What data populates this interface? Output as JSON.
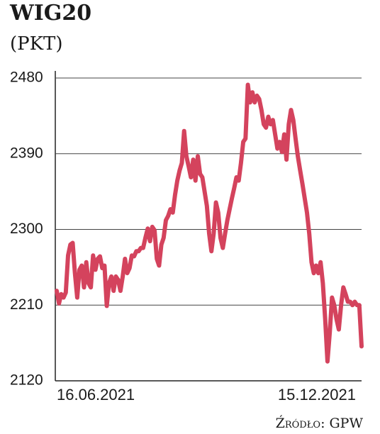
{
  "chart_data": {
    "type": "line",
    "title": "WIG20",
    "subtitle": "(PKT)",
    "source": "Źródło: GPW",
    "categories": [
      "16.06.2021",
      null,
      null,
      null,
      null,
      null,
      null,
      null,
      null,
      null,
      null,
      null,
      null,
      null,
      null,
      null,
      null,
      null,
      null,
      null,
      null,
      null,
      null,
      null,
      null,
      null,
      null,
      null,
      null,
      null,
      null,
      null,
      null,
      null,
      null,
      null,
      null,
      null,
      null,
      null,
      null,
      null,
      null,
      null,
      null,
      null,
      null,
      null,
      null,
      null,
      null,
      null,
      null,
      null,
      null,
      null,
      null,
      null,
      null,
      null,
      null,
      null,
      null,
      null,
      null,
      null,
      null,
      null,
      null,
      null,
      null,
      null,
      null,
      null,
      null,
      null,
      null,
      null,
      null,
      null,
      null,
      null,
      null,
      null,
      null,
      null,
      null,
      null,
      null,
      null,
      null,
      null,
      null,
      null,
      null,
      null,
      null,
      null,
      null,
      null,
      null,
      null,
      null,
      null,
      null,
      null,
      null,
      null,
      null,
      null,
      null,
      null,
      null,
      null,
      null,
      null,
      null,
      null,
      null,
      null,
      null,
      null,
      null,
      null,
      null,
      null,
      null,
      null,
      null,
      null,
      null,
      null,
      null,
      null,
      "15.12.2021"
    ],
    "series": [
      {
        "name": "WIG20",
        "color": "#d4435d",
        "values": [
          2227,
          2212,
          2223,
          2219,
          2225,
          2269,
          2282,
          2284,
          2248,
          2219,
          2252,
          2257,
          2231,
          2261,
          2236,
          2231,
          2269,
          2252,
          2265,
          2268,
          2254,
          2257,
          2209,
          2236,
          2244,
          2227,
          2244,
          2240,
          2227,
          2244,
          2265,
          2248,
          2254,
          2269,
          2268,
          2274,
          2274,
          2278,
          2278,
          2290,
          2301,
          2286,
          2303,
          2299,
          2265,
          2257,
          2282,
          2290,
          2311,
          2316,
          2324,
          2320,
          2341,
          2358,
          2370,
          2379,
          2417,
          2387,
          2375,
          2362,
          2383,
          2358,
          2387,
          2366,
          2362,
          2345,
          2328,
          2295,
          2274,
          2295,
          2332,
          2320,
          2290,
          2278,
          2295,
          2311,
          2324,
          2337,
          2349,
          2362,
          2358,
          2379,
          2404,
          2408,
          2472,
          2451,
          2463,
          2451,
          2459,
          2455,
          2442,
          2425,
          2421,
          2434,
          2425,
          2430,
          2413,
          2396,
          2404,
          2392,
          2413,
          2383,
          2425,
          2442,
          2430,
          2408,
          2387,
          2370,
          2354,
          2337,
          2320,
          2295,
          2261,
          2248,
          2257,
          2248,
          2261,
          2236,
          2193,
          2143,
          2177,
          2219,
          2210,
          2193,
          2181,
          2210,
          2231,
          2223,
          2214,
          2214,
          2210,
          2214,
          2210,
          2210,
          2161
        ]
      }
    ],
    "ylim": [
      2120,
      2480
    ],
    "yticks": [
      2120,
      2210,
      2300,
      2390,
      2480
    ],
    "grid": true
  }
}
